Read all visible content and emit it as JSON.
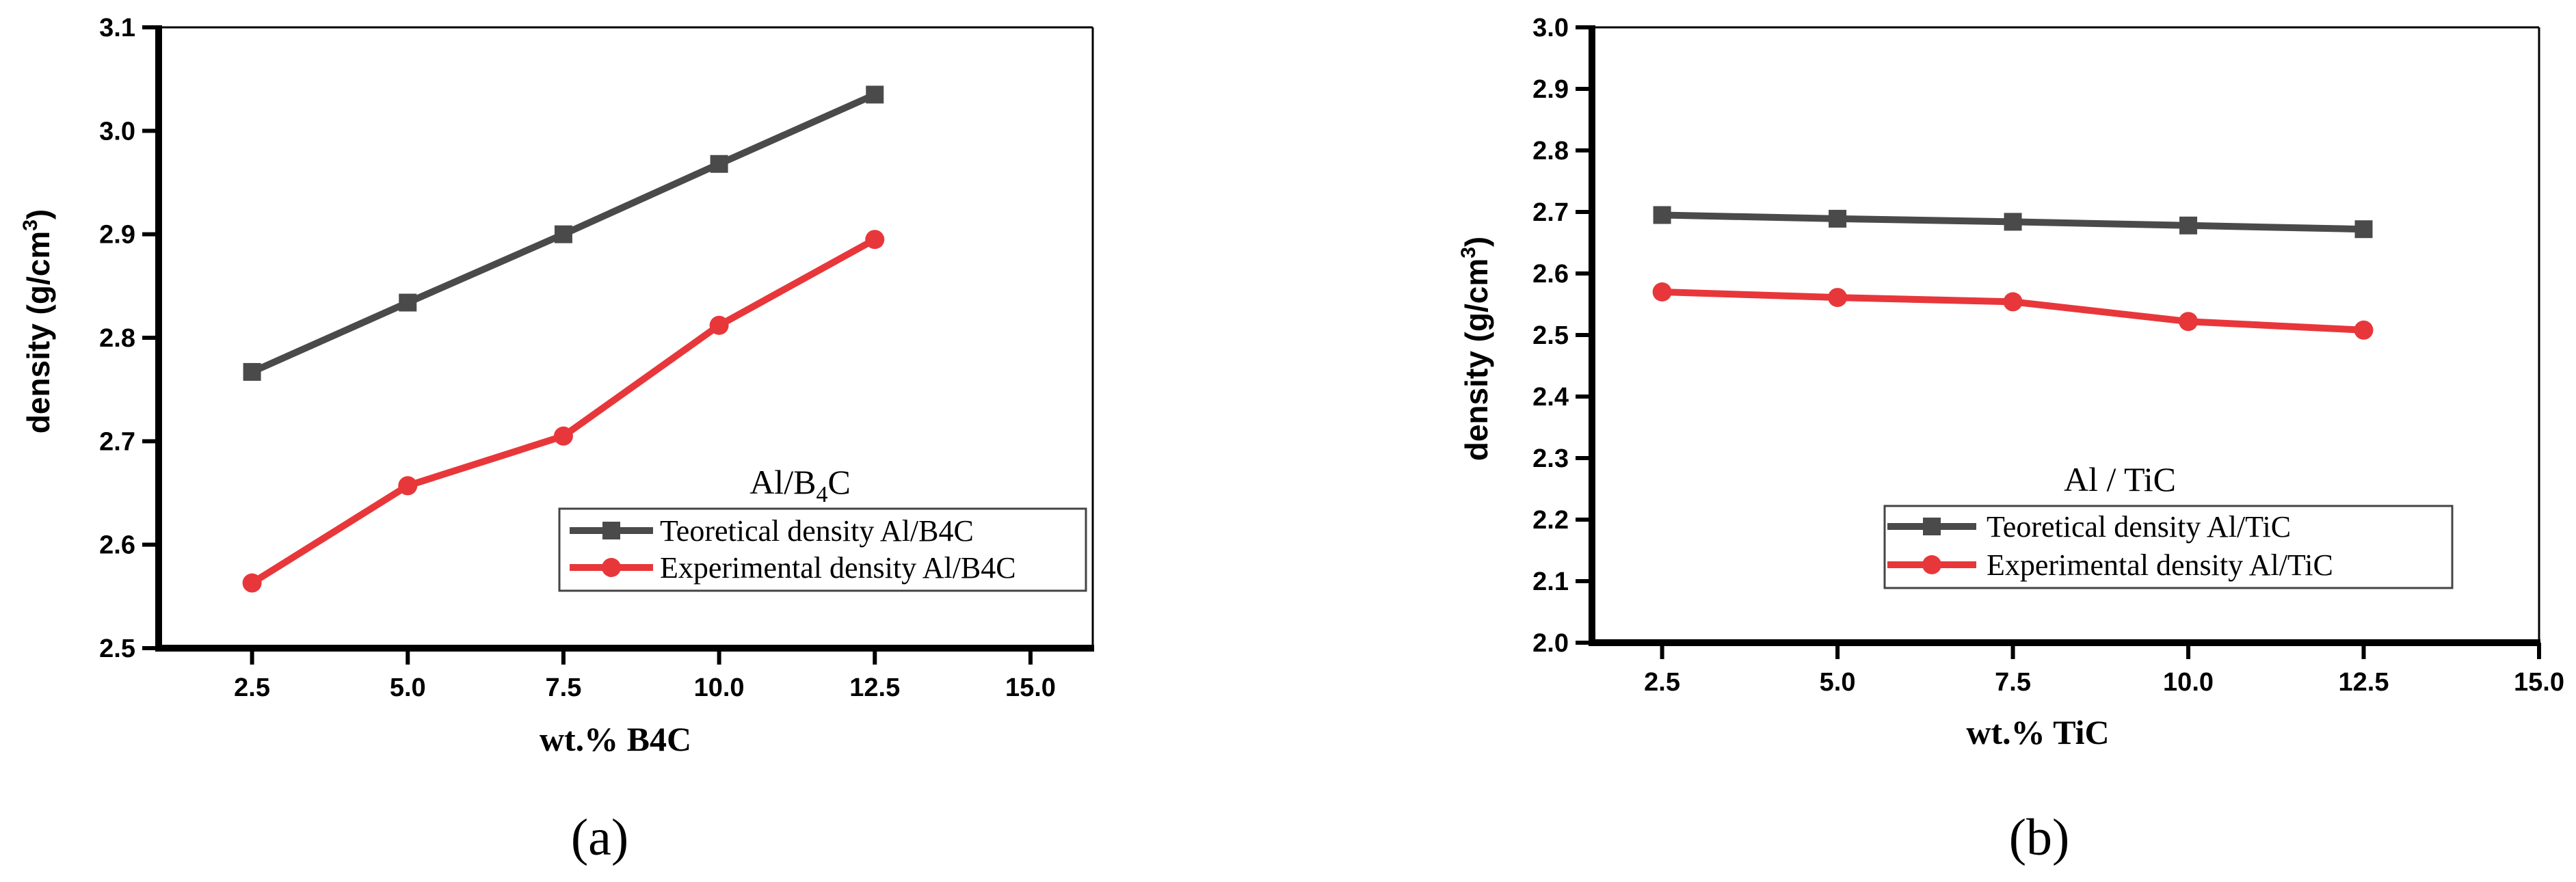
{
  "chart_data": [
    {
      "type": "line",
      "panel_label": "(a)",
      "xlabel": "wt.% B4C",
      "ylabel": "density (g/cm",
      "ylabel_sup": "3",
      "ylabel_close": ")",
      "annotation": {
        "text": "Al/B",
        "sub": "4",
        "tail": "C"
      },
      "xlim": [
        1.0,
        16.0
      ],
      "ylim": [
        2.5,
        3.1
      ],
      "xticks": [
        2.5,
        5.0,
        7.5,
        10.0,
        12.5,
        15.0
      ],
      "yticks": [
        2.5,
        2.6,
        2.7,
        2.8,
        2.9,
        3.0,
        3.1
      ],
      "x": [
        2.5,
        5.0,
        7.5,
        10.0,
        12.5
      ],
      "series": [
        {
          "name": "Teoretical density Al/B4C",
          "values": [
            2.767,
            2.834,
            2.9,
            2.968,
            3.035
          ],
          "color": "#4a4a4a",
          "marker": "square"
        },
        {
          "name": "Experimental density Al/B4C",
          "values": [
            2.563,
            2.657,
            2.705,
            2.812,
            2.895
          ],
          "color": "#e8373a",
          "marker": "circle"
        }
      ],
      "grid": false,
      "legend_position": "lower-right"
    },
    {
      "type": "line",
      "panel_label": "(b)",
      "xlabel": "wt.% TiC",
      "ylabel": "density (g/cm",
      "ylabel_sup": "3",
      "ylabel_close": ")",
      "annotation": {
        "text": "Al / TiC",
        "sub": "",
        "tail": ""
      },
      "xlim": [
        1.5,
        15.0
      ],
      "ylim": [
        2.0,
        3.0
      ],
      "xticks": [
        2.5,
        5.0,
        7.5,
        10.0,
        12.5,
        15.0
      ],
      "yticks": [
        2.0,
        2.1,
        2.2,
        2.3,
        2.4,
        2.5,
        2.6,
        2.7,
        2.8,
        2.9,
        3.0
      ],
      "x": [
        2.5,
        5.0,
        7.5,
        10.0,
        12.5
      ],
      "series": [
        {
          "name": "Teoretical density Al/TiC",
          "values": [
            2.695,
            2.689,
            2.684,
            2.678,
            2.672
          ],
          "color": "#4a4a4a",
          "marker": "square"
        },
        {
          "name": "Experimental density Al/TiC",
          "values": [
            2.57,
            2.561,
            2.554,
            2.522,
            2.508
          ],
          "color": "#e8373a",
          "marker": "circle"
        }
      ],
      "grid": false,
      "legend_position": "center-right"
    }
  ]
}
